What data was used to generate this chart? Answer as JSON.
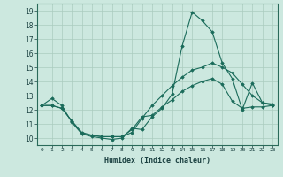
{
  "xlabel": "Humidex (Indice chaleur)",
  "ylabel": "",
  "background_color": "#cce8df",
  "grid_color": "#aaccbe",
  "line_color": "#1a6b5a",
  "xlim": [
    -0.5,
    23.5
  ],
  "ylim": [
    9.5,
    19.5
  ],
  "xticks": [
    0,
    1,
    2,
    3,
    4,
    5,
    6,
    7,
    8,
    9,
    10,
    11,
    12,
    13,
    14,
    15,
    16,
    17,
    18,
    19,
    20,
    21,
    22,
    23
  ],
  "yticks": [
    10,
    11,
    12,
    13,
    14,
    15,
    16,
    17,
    18,
    19
  ],
  "series": [
    {
      "x": [
        0,
        1,
        2,
        3,
        4,
        5,
        6,
        7,
        8,
        9,
        10,
        11,
        12,
        13,
        14,
        15,
        16,
        17,
        18,
        19,
        20,
        21,
        22,
        23
      ],
      "y": [
        12.3,
        12.8,
        12.3,
        11.1,
        10.3,
        10.1,
        10.0,
        9.9,
        10.0,
        10.7,
        10.6,
        11.5,
        12.1,
        13.1,
        16.5,
        18.9,
        18.3,
        17.5,
        15.3,
        14.2,
        12.0,
        13.9,
        12.5,
        12.4
      ]
    },
    {
      "x": [
        0,
        1,
        2,
        3,
        4,
        5,
        6,
        7,
        8,
        9,
        10,
        11,
        12,
        13,
        14,
        15,
        16,
        17,
        18,
        19,
        20,
        21,
        22,
        23
      ],
      "y": [
        12.3,
        12.3,
        12.1,
        11.2,
        10.3,
        10.2,
        10.1,
        10.1,
        10.1,
        10.4,
        11.4,
        12.3,
        13.0,
        13.7,
        14.3,
        14.8,
        15.0,
        15.3,
        15.0,
        14.6,
        13.8,
        13.0,
        12.5,
        12.3
      ]
    },
    {
      "x": [
        0,
        1,
        2,
        3,
        4,
        5,
        6,
        7,
        8,
        9,
        10,
        11,
        12,
        13,
        14,
        15,
        16,
        17,
        18,
        19,
        20,
        21,
        22,
        23
      ],
      "y": [
        12.3,
        12.3,
        12.1,
        11.2,
        10.4,
        10.2,
        10.1,
        10.1,
        10.1,
        10.6,
        11.5,
        11.6,
        12.2,
        12.7,
        13.3,
        13.7,
        14.0,
        14.2,
        13.8,
        12.6,
        12.1,
        12.2,
        12.2,
        12.3
      ]
    }
  ]
}
